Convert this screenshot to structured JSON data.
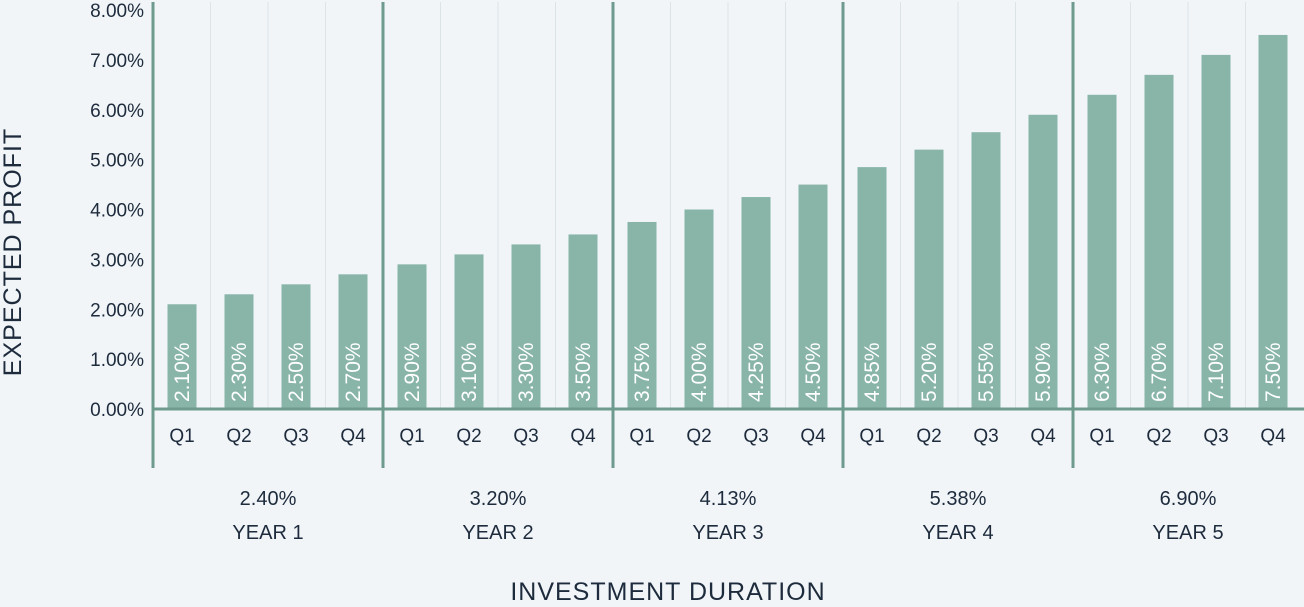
{
  "chart_data": {
    "type": "bar",
    "title": "",
    "xlabel": "INVESTMENT DURATION",
    "ylabel": "EXPECTED PROFIT",
    "ylim": [
      0,
      8
    ],
    "yticks": [
      "0.00%",
      "1.00%",
      "2.00%",
      "3.00%",
      "4.00%",
      "5.00%",
      "6.00%",
      "7.00%",
      "8.00%"
    ],
    "groups": [
      {
        "year": "YEAR 1",
        "average": "2.40%",
        "quarters": [
          {
            "q": "Q1",
            "value": 2.1,
            "label": "2.10%"
          },
          {
            "q": "Q2",
            "value": 2.3,
            "label": "2.30%"
          },
          {
            "q": "Q3",
            "value": 2.5,
            "label": "2.50%"
          },
          {
            "q": "Q4",
            "value": 2.7,
            "label": "2.70%"
          }
        ]
      },
      {
        "year": "YEAR 2",
        "average": "3.20%",
        "quarters": [
          {
            "q": "Q1",
            "value": 2.9,
            "label": "2.90%"
          },
          {
            "q": "Q2",
            "value": 3.1,
            "label": "3.10%"
          },
          {
            "q": "Q3",
            "value": 3.3,
            "label": "3.30%"
          },
          {
            "q": "Q4",
            "value": 3.5,
            "label": "3.50%"
          }
        ]
      },
      {
        "year": "YEAR 3",
        "average": "4.13%",
        "quarters": [
          {
            "q": "Q1",
            "value": 3.75,
            "label": "3.75%"
          },
          {
            "q": "Q2",
            "value": 4.0,
            "label": "4.00%"
          },
          {
            "q": "Q3",
            "value": 4.25,
            "label": "4.25%"
          },
          {
            "q": "Q4",
            "value": 4.5,
            "label": "4.50%"
          }
        ]
      },
      {
        "year": "YEAR 4",
        "average": "5.38%",
        "quarters": [
          {
            "q": "Q1",
            "value": 4.85,
            "label": "4.85%"
          },
          {
            "q": "Q2",
            "value": 5.2,
            "label": "5.20%"
          },
          {
            "q": "Q3",
            "value": 5.55,
            "label": "5.55%"
          },
          {
            "q": "Q4",
            "value": 5.9,
            "label": "5.90%"
          }
        ]
      },
      {
        "year": "YEAR 5",
        "average": "6.90%",
        "quarters": [
          {
            "q": "Q1",
            "value": 6.3,
            "label": "6.30%"
          },
          {
            "q": "Q2",
            "value": 6.7,
            "label": "6.70%"
          },
          {
            "q": "Q3",
            "value": 7.1,
            "label": "7.10%"
          },
          {
            "q": "Q4",
            "value": 7.5,
            "label": "7.50%"
          }
        ]
      }
    ],
    "colors": {
      "bar": "#89b5a9",
      "axis": "#6f9a8e",
      "grid": "#dde4e8",
      "text": "#1d2b3c",
      "background": "#f1f5f8"
    }
  }
}
